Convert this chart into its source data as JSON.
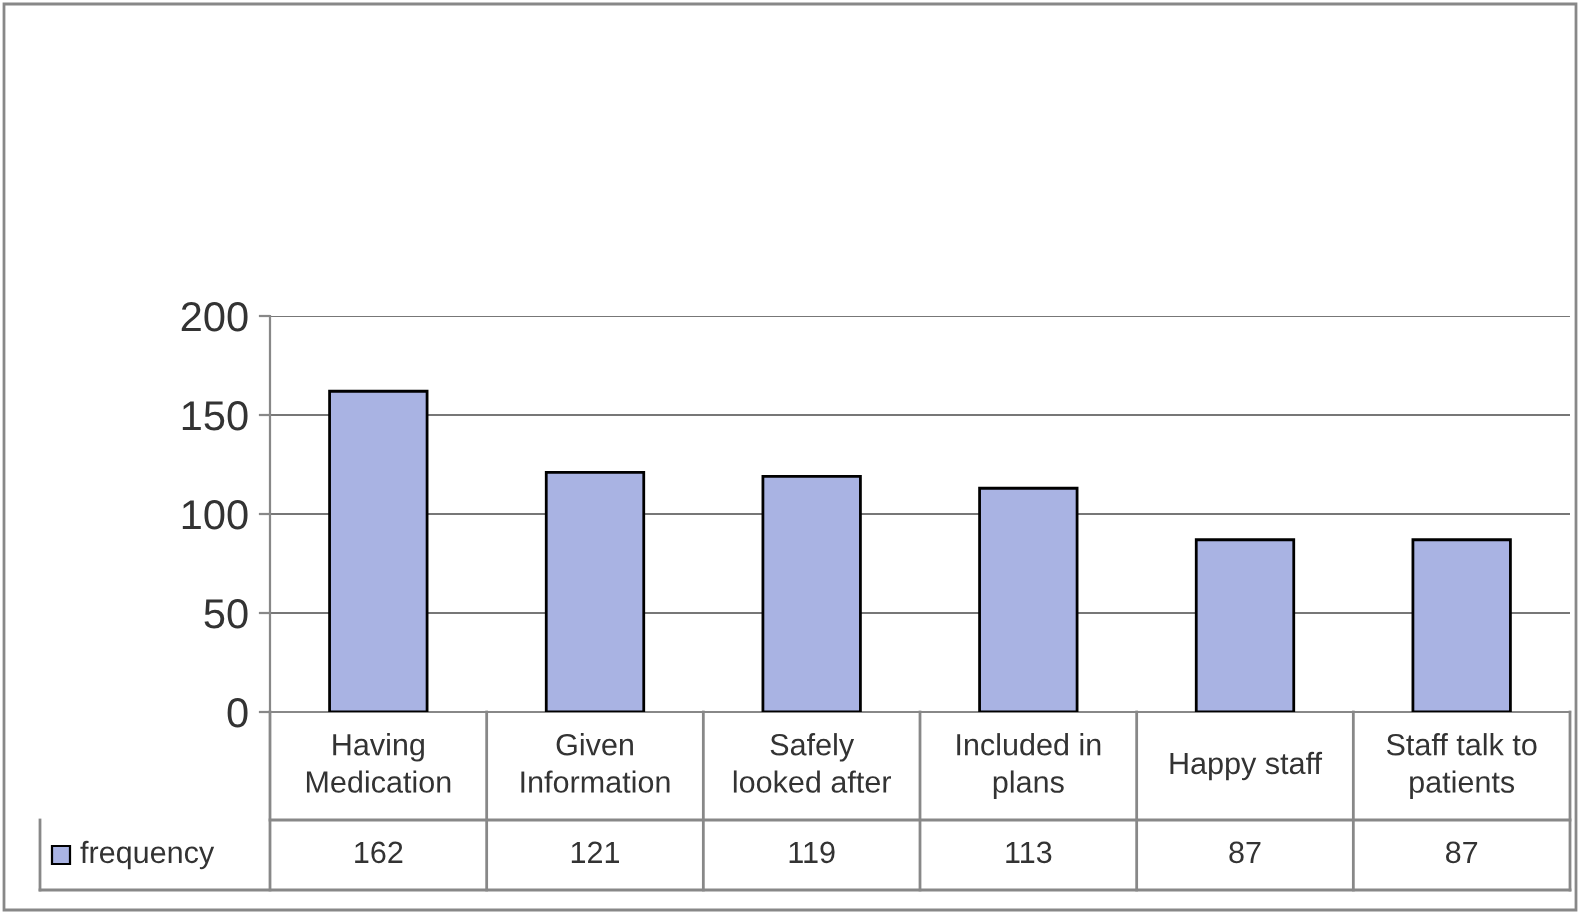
{
  "chart_data": {
    "type": "bar",
    "categories": [
      "Having\nMedication",
      "Given\nInformation",
      "Safely\nlooked after",
      "Included in\nplans",
      "Happy staff",
      "Staff talk to\npatients"
    ],
    "series": [
      {
        "name": "frequency",
        "color": "#a9b3e3",
        "values": [
          162,
          121,
          119,
          113,
          87,
          87
        ]
      }
    ],
    "ylim": [
      0,
      200
    ],
    "yticks": [
      0,
      50,
      100,
      150,
      200
    ],
    "grid": "y",
    "legend": "bottom left",
    "data_labels": true
  }
}
